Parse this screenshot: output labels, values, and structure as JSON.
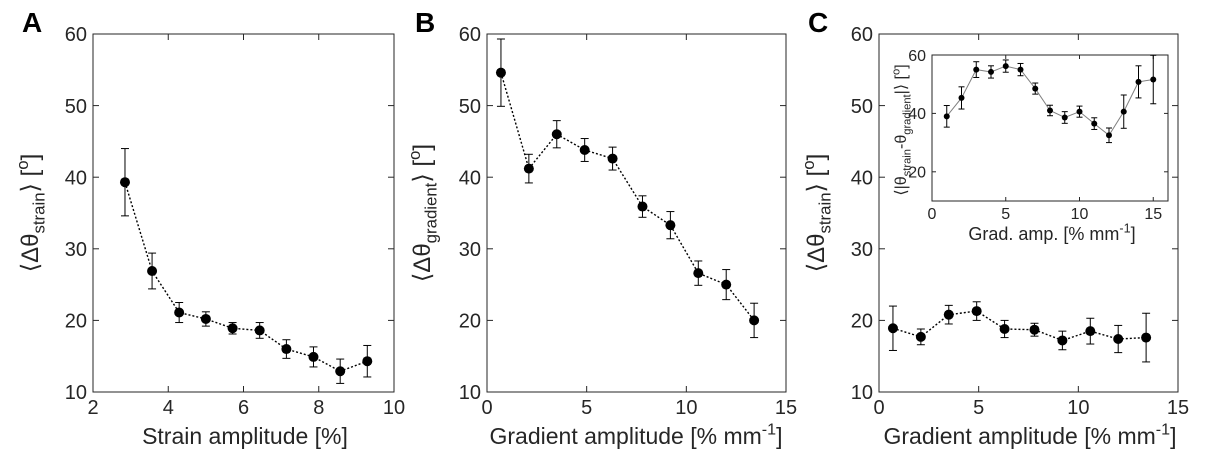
{
  "colors": {
    "marker": "#000000",
    "axis": "#262626",
    "inset_line": "#808080"
  },
  "chart_data": [
    {
      "panel": "A",
      "type": "scatter",
      "xlabel": "Strain amplitude [%]",
      "ylabel_parts": [
        "⟨Δθ",
        "strain",
        "⟩ [",
        "o",
        "]"
      ],
      "xlim": [
        2,
        10
      ],
      "ylim": [
        10,
        60
      ],
      "xticks": [
        "2",
        "4",
        "6",
        "8",
        "10"
      ],
      "yticks": [
        "10",
        "20",
        "30",
        "40",
        "50",
        "60"
      ],
      "points": [
        {
          "x": 2.85,
          "y": 39.3,
          "err": 4.7
        },
        {
          "x": 3.57,
          "y": 26.9,
          "err": 2.5
        },
        {
          "x": 4.29,
          "y": 21.1,
          "err": 1.4
        },
        {
          "x": 5.0,
          "y": 20.2,
          "err": 1.0
        },
        {
          "x": 5.71,
          "y": 18.9,
          "err": 0.8
        },
        {
          "x": 6.43,
          "y": 18.6,
          "err": 1.1
        },
        {
          "x": 7.14,
          "y": 16.0,
          "err": 1.3
        },
        {
          "x": 7.86,
          "y": 14.9,
          "err": 1.4
        },
        {
          "x": 8.57,
          "y": 12.9,
          "err": 1.7
        },
        {
          "x": 9.29,
          "y": 14.3,
          "err": 2.2
        }
      ]
    },
    {
      "panel": "B",
      "type": "scatter",
      "xlabel_parts": [
        "Gradient amplitude [% mm",
        "-1",
        "]"
      ],
      "ylabel_parts": [
        "⟨Δθ",
        "gradient",
        "⟩ [",
        "o",
        "]"
      ],
      "xlim": [
        0,
        15
      ],
      "ylim": [
        10,
        60
      ],
      "xticks": [
        "0",
        "5",
        "10",
        "15"
      ],
      "yticks": [
        "10",
        "20",
        "30",
        "40",
        "50",
        "60"
      ],
      "points": [
        {
          "x": 0.7,
          "y": 54.6,
          "err": 4.7
        },
        {
          "x": 2.1,
          "y": 41.2,
          "err": 2.0
        },
        {
          "x": 3.5,
          "y": 46.0,
          "err": 1.9
        },
        {
          "x": 4.9,
          "y": 43.8,
          "err": 1.6
        },
        {
          "x": 6.3,
          "y": 42.6,
          "err": 1.6
        },
        {
          "x": 7.8,
          "y": 35.9,
          "err": 1.5
        },
        {
          "x": 9.2,
          "y": 33.3,
          "err": 1.9
        },
        {
          "x": 10.6,
          "y": 26.6,
          "err": 1.7
        },
        {
          "x": 12.0,
          "y": 25.0,
          "err": 2.1
        },
        {
          "x": 13.4,
          "y": 20.0,
          "err": 2.4
        }
      ]
    },
    {
      "panel": "C",
      "type": "scatter",
      "xlabel_parts": [
        "Gradient amplitude [% mm",
        "-1",
        "]"
      ],
      "ylabel_parts": [
        "⟨Δθ",
        "strain",
        "⟩ [",
        "o",
        "]"
      ],
      "xlim": [
        0,
        15
      ],
      "ylim": [
        10,
        60
      ],
      "xticks": [
        "0",
        "5",
        "10",
        "15"
      ],
      "yticks": [
        "10",
        "20",
        "30",
        "40",
        "50",
        "60"
      ],
      "points": [
        {
          "x": 0.7,
          "y": 18.9,
          "err": 3.1
        },
        {
          "x": 2.1,
          "y": 17.7,
          "err": 1.1
        },
        {
          "x": 3.5,
          "y": 20.8,
          "err": 1.3
        },
        {
          "x": 4.9,
          "y": 21.3,
          "err": 1.3
        },
        {
          "x": 6.3,
          "y": 18.8,
          "err": 1.2
        },
        {
          "x": 7.8,
          "y": 18.7,
          "err": 0.9
        },
        {
          "x": 9.2,
          "y": 17.2,
          "err": 1.3
        },
        {
          "x": 10.6,
          "y": 18.5,
          "err": 1.8
        },
        {
          "x": 12.0,
          "y": 17.4,
          "err": 1.9
        },
        {
          "x": 13.4,
          "y": 17.6,
          "err": 3.4
        }
      ]
    },
    {
      "panel": "C-inset",
      "type": "line",
      "xlabel_parts": [
        "Grad. amp. [% mm",
        "-1",
        "]"
      ],
      "ylabel_parts": [
        "⟨|θ",
        "strain",
        "-θ",
        "gradient",
        "|⟩ [",
        "o",
        "]"
      ],
      "xlim": [
        0,
        16
      ],
      "ylim": [
        10,
        60
      ],
      "xticks": [
        "0",
        "5",
        "10",
        "15"
      ],
      "xtick_values": [
        0,
        5,
        10,
        15
      ],
      "yticks": [
        "20",
        "40",
        "60"
      ],
      "ytick_values": [
        20,
        40,
        60
      ],
      "points": [
        {
          "x": 1,
          "y": 39.0,
          "err": 3.7
        },
        {
          "x": 2,
          "y": 45.3,
          "err": 3.8
        },
        {
          "x": 3,
          "y": 55.0,
          "err": 2.7
        },
        {
          "x": 4,
          "y": 54.2,
          "err": 2.1
        },
        {
          "x": 5,
          "y": 56.2,
          "err": 2.1
        },
        {
          "x": 6,
          "y": 55.0,
          "err": 2.1
        },
        {
          "x": 7,
          "y": 48.5,
          "err": 1.9
        },
        {
          "x": 8,
          "y": 41.0,
          "err": 1.8
        },
        {
          "x": 9,
          "y": 38.6,
          "err": 2.0
        },
        {
          "x": 10,
          "y": 40.6,
          "err": 1.9
        },
        {
          "x": 11,
          "y": 36.5,
          "err": 2.0
        },
        {
          "x": 12,
          "y": 32.5,
          "err": 2.5
        },
        {
          "x": 13,
          "y": 40.6,
          "err": 5.7
        },
        {
          "x": 14,
          "y": 50.8,
          "err": 5.5
        },
        {
          "x": 15,
          "y": 51.6,
          "err": 8.3
        }
      ]
    }
  ]
}
